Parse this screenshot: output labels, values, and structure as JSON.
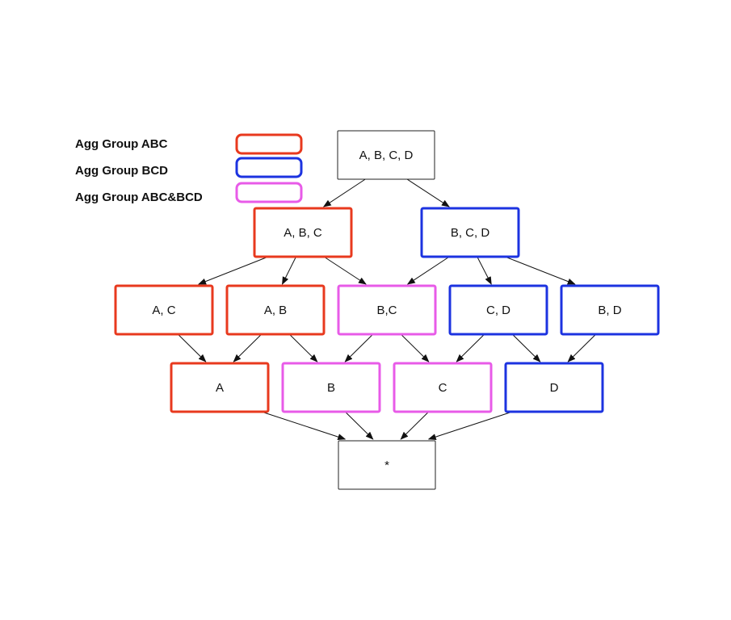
{
  "legend": {
    "items": [
      {
        "label": "Agg Group ABC",
        "color": "#e8391e"
      },
      {
        "label": "Agg Group BCD",
        "color": "#1c33e0"
      },
      {
        "label": "Agg Group ABC&BCD",
        "color": "#e85be8"
      }
    ]
  },
  "colors": {
    "abc": "#e8391e",
    "bcd": "#1c33e0",
    "both": "#e85be8",
    "plain": "#222222"
  },
  "nodes": [
    {
      "id": "abcd",
      "label": "A, B, C, D",
      "group": "plain"
    },
    {
      "id": "abc",
      "label": "A, B, C",
      "group": "abc"
    },
    {
      "id": "bcd",
      "label": "B, C, D",
      "group": "bcd"
    },
    {
      "id": "ac",
      "label": "A, C",
      "group": "abc"
    },
    {
      "id": "ab",
      "label": "A, B",
      "group": "abc"
    },
    {
      "id": "bc",
      "label": "B,C",
      "group": "both"
    },
    {
      "id": "cd",
      "label": "C, D",
      "group": "bcd"
    },
    {
      "id": "bd",
      "label": "B, D",
      "group": "bcd"
    },
    {
      "id": "a",
      "label": "A",
      "group": "abc"
    },
    {
      "id": "b",
      "label": "B",
      "group": "both"
    },
    {
      "id": "c",
      "label": "C",
      "group": "both"
    },
    {
      "id": "d",
      "label": "D",
      "group": "bcd"
    },
    {
      "id": "star",
      "label": "*",
      "group": "plain"
    }
  ],
  "edges": [
    [
      "abcd",
      "abc"
    ],
    [
      "abcd",
      "bcd"
    ],
    [
      "abc",
      "ac"
    ],
    [
      "abc",
      "ab"
    ],
    [
      "abc",
      "bc"
    ],
    [
      "bcd",
      "bc"
    ],
    [
      "bcd",
      "cd"
    ],
    [
      "bcd",
      "bd"
    ],
    [
      "ac",
      "a"
    ],
    [
      "ab",
      "a"
    ],
    [
      "ab",
      "b"
    ],
    [
      "bc",
      "b"
    ],
    [
      "bc",
      "c"
    ],
    [
      "cd",
      "c"
    ],
    [
      "cd",
      "d"
    ],
    [
      "bd",
      "d"
    ],
    [
      "a",
      "star"
    ],
    [
      "b",
      "star"
    ],
    [
      "c",
      "star"
    ],
    [
      "d",
      "star"
    ]
  ]
}
